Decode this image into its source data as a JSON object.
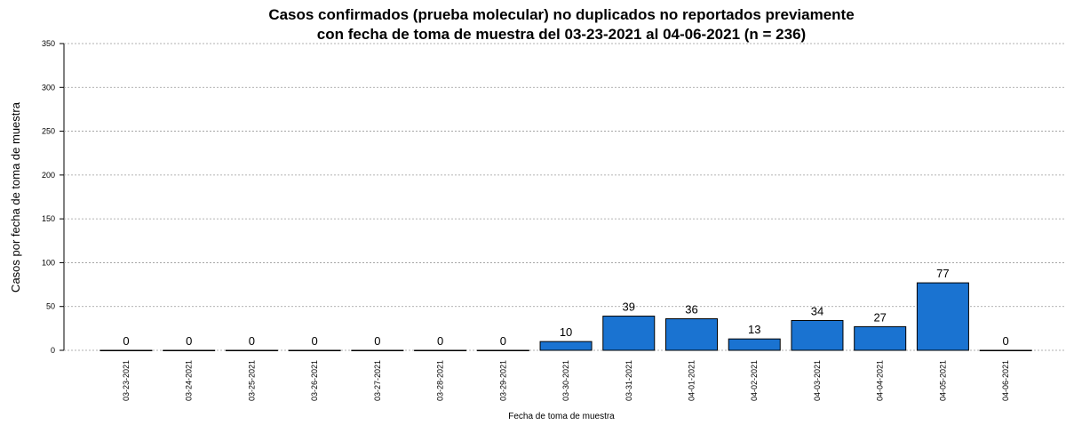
{
  "chart_data": {
    "type": "bar",
    "title": [
      "Casos confirmados (prueba molecular) no duplicados no reportados previamente",
      "con fecha de toma de muestra del 03-23-2021 al 04-06-2021 (n = 236)"
    ],
    "x_label": "Fecha de toma de muestra",
    "y_label": "Casos por fecha de toma de muestra",
    "categories": [
      "03-23-2021",
      "03-24-2021",
      "03-25-2021",
      "03-26-2021",
      "03-27-2021",
      "03-28-2021",
      "03-29-2021",
      "03-30-2021",
      "03-31-2021",
      "04-01-2021",
      "04-02-2021",
      "04-03-2021",
      "04-04-2021",
      "04-05-2021",
      "04-06-2021"
    ],
    "values": [
      0,
      0,
      0,
      0,
      0,
      0,
      0,
      10,
      39,
      36,
      13,
      34,
      27,
      77,
      0
    ],
    "color": "#1a73d1",
    "ylim": [
      0,
      350
    ],
    "yticks": [
      0,
      50,
      100,
      150,
      200,
      250,
      300,
      350
    ],
    "grid": true
  }
}
